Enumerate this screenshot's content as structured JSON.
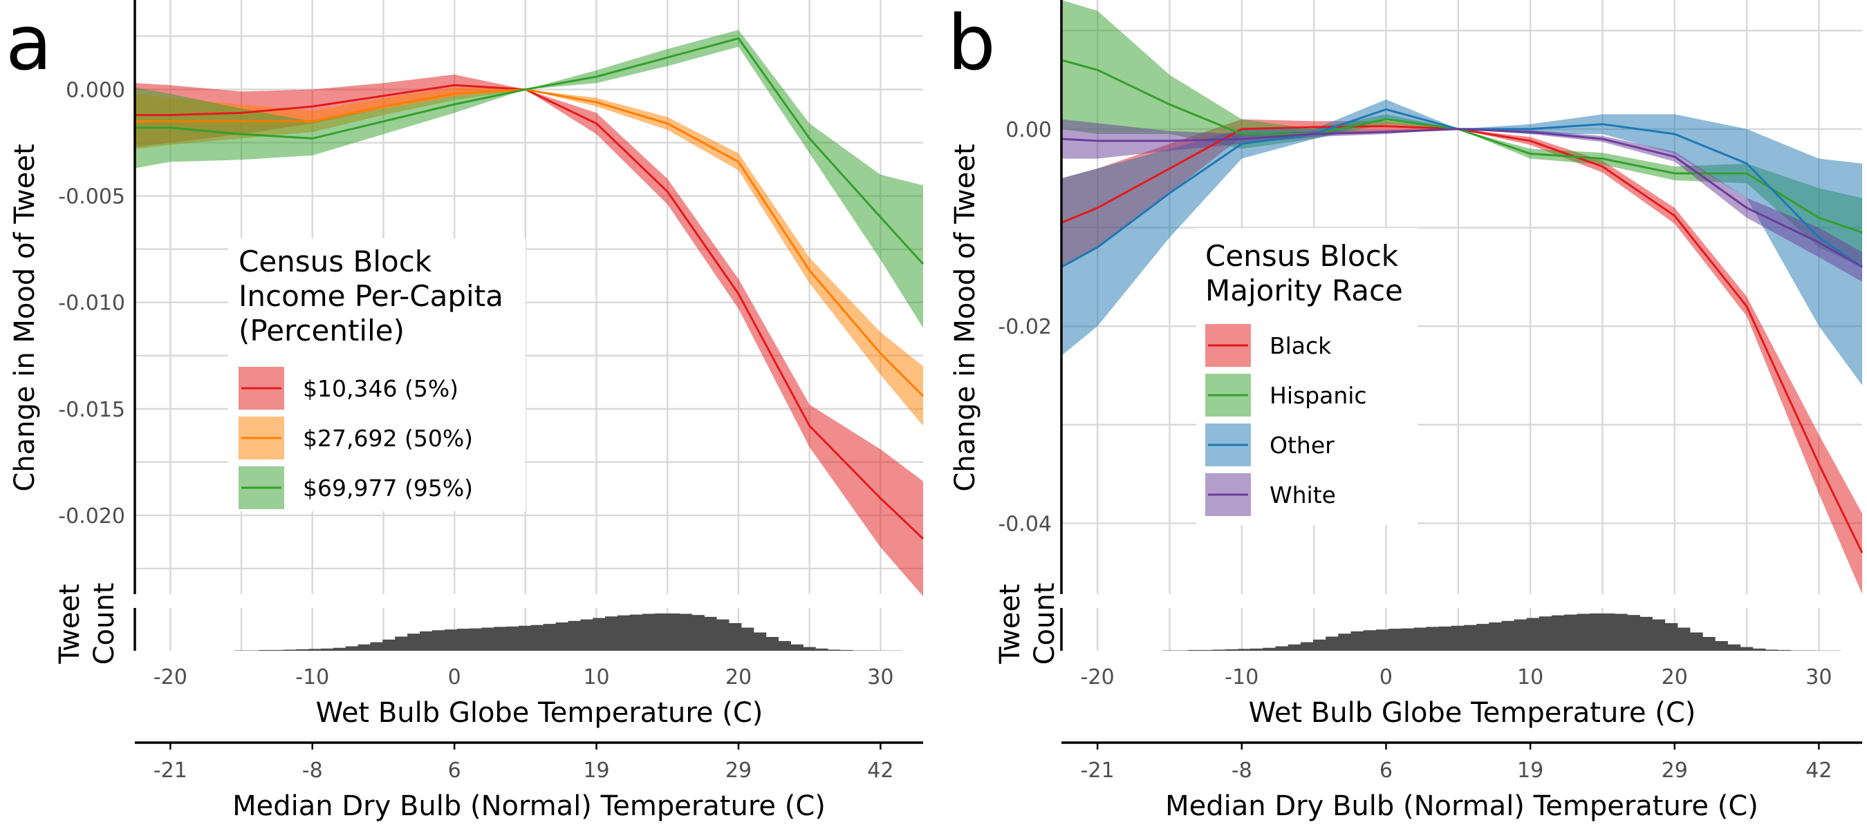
{
  "colors": {
    "red": "#e41a1c",
    "orange": "#ff7f00",
    "green": "#33a02c",
    "blue": "#1f78b4",
    "purple": "#6a3d9a",
    "histogram": "#4d4d4d"
  },
  "chart_data": [
    {
      "panel": "a",
      "type": "line",
      "ylabel": "Change in Mood of Tweet",
      "xlabel": "Wet Bulb Globe Temperature (C)",
      "xlabel2": "Median Dry Bulb (Normal) Temperature (C)",
      "xlim": [
        -22.5,
        33
      ],
      "ylim": [
        -0.0237,
        0.0042
      ],
      "x_ticks": [
        "-20",
        "-10",
        "0",
        "10",
        "20",
        "30"
      ],
      "y_ticks": [
        "0.000",
        "-0.005",
        "-0.010",
        "-0.015",
        "-0.020"
      ],
      "x2_ticks": [
        "-21",
        "-8",
        "6",
        "19",
        "29",
        "42"
      ],
      "hist_label": [
        "Tweet",
        "Count"
      ],
      "legend": {
        "title": [
          "Census Block",
          "Income Per-Capita",
          "(Percentile)"
        ],
        "placement": "center-left"
      },
      "series": [
        {
          "name": "$10,346 (5%)",
          "color": "red",
          "x": [
            -22.5,
            -20,
            -15,
            -10,
            -5,
            0,
            5,
            10,
            15,
            20,
            25,
            30,
            33
          ],
          "y": [
            -0.0012,
            -0.0012,
            -0.0011,
            -0.0008,
            -0.0003,
            0.0002,
            0.0,
            -0.0016,
            -0.0048,
            -0.0096,
            -0.0158,
            -0.0192,
            -0.0211
          ],
          "lower": [
            -0.0027,
            -0.0025,
            -0.0021,
            -0.0016,
            -0.0009,
            -0.0003,
            0.0,
            -0.0021,
            -0.0054,
            -0.0103,
            -0.0168,
            -0.0215,
            -0.0238
          ],
          "upper": [
            0.0003,
            0.0002,
            -0.0001,
            0.0,
            0.0003,
            0.0007,
            0.0,
            -0.0011,
            -0.0042,
            -0.0089,
            -0.0148,
            -0.0169,
            -0.0184
          ]
        },
        {
          "name": "$27,692 (50%)",
          "color": "orange",
          "x": [
            -22.5,
            -20,
            -15,
            -10,
            -5,
            0,
            5,
            10,
            15,
            20,
            25,
            30,
            33
          ],
          "y": [
            -0.0015,
            -0.0015,
            -0.0015,
            -0.0015,
            -0.0008,
            -0.0002,
            0.0,
            -0.0006,
            -0.0016,
            -0.0034,
            -0.0085,
            -0.0124,
            -0.0144
          ],
          "lower": [
            -0.0028,
            -0.0026,
            -0.0023,
            -0.002,
            -0.0012,
            -0.0005,
            0.0,
            -0.0008,
            -0.0019,
            -0.0038,
            -0.0091,
            -0.0134,
            -0.0158
          ],
          "upper": [
            -0.0002,
            -0.0004,
            -0.0007,
            -0.001,
            -0.0004,
            0.0001,
            0.0,
            -0.0004,
            -0.0013,
            -0.003,
            -0.0079,
            -0.0114,
            -0.013
          ]
        },
        {
          "name": "$69,977 (95%)",
          "color": "green",
          "x": [
            -22.5,
            -20,
            -15,
            -10,
            -5,
            0,
            5,
            10,
            15,
            20,
            25,
            30,
            33
          ],
          "y": [
            -0.0018,
            -0.0018,
            -0.0021,
            -0.0023,
            -0.0015,
            -0.0007,
            0.0,
            0.0006,
            0.0015,
            0.0024,
            -0.0023,
            -0.006,
            -0.0082
          ],
          "lower": [
            -0.0037,
            -0.0034,
            -0.0033,
            -0.0031,
            -0.0021,
            -0.0011,
            0.0,
            0.0003,
            0.0011,
            0.002,
            -0.003,
            -0.008,
            -0.0112
          ],
          "upper": [
            0.0001,
            -0.0002,
            -0.0009,
            -0.0015,
            -0.0009,
            -0.0003,
            0.0,
            0.0009,
            0.0019,
            0.0028,
            -0.0016,
            -0.004,
            -0.0045
          ]
        }
      ],
      "histogram": [
        0.01,
        0.01,
        0.02,
        0.02,
        0.03,
        0.04,
        0.05,
        0.06,
        0.08,
        0.12,
        0.17,
        0.23,
        0.3,
        0.38,
        0.46,
        0.52,
        0.55,
        0.57,
        0.59,
        0.6,
        0.62,
        0.64,
        0.65,
        0.67,
        0.69,
        0.72,
        0.76,
        0.8,
        0.84,
        0.88,
        0.92,
        0.95,
        0.97,
        0.99,
        1.0,
        1.0,
        0.99,
        0.96,
        0.91,
        0.84,
        0.74,
        0.62,
        0.49,
        0.37,
        0.26,
        0.17,
        0.1,
        0.06,
        0.03,
        0.02,
        0.01,
        0.01,
        0.005,
        0.005
      ]
    },
    {
      "panel": "b",
      "type": "line",
      "ylabel": "Change in Mood of Tweet",
      "xlabel": "Wet Bulb Globe Temperature (C)",
      "xlabel2": "Median Dry Bulb (Normal) Temperature (C)",
      "xlim": [
        -22.5,
        33
      ],
      "ylim": [
        -0.0472,
        0.0131
      ],
      "x_ticks": [
        "-20",
        "-10",
        "0",
        "10",
        "20",
        "30"
      ],
      "y_ticks": [
        "0.00",
        "-0.02",
        "-0.04"
      ],
      "x2_ticks": [
        "-21",
        "-8",
        "6",
        "19",
        "29",
        "42"
      ],
      "hist_label": [
        "Tweet",
        "Count"
      ],
      "legend": {
        "title": [
          "Census Block",
          "Majority Race"
        ],
        "placement": "center"
      },
      "series": [
        {
          "name": "Black",
          "color": "red",
          "x": [
            -22.5,
            -20,
            -15,
            -10,
            -5,
            0,
            5,
            10,
            15,
            20,
            25,
            30,
            33
          ],
          "y": [
            -0.0095,
            -0.008,
            -0.004,
            0.0,
            0.0002,
            0.0003,
            0.0,
            -0.0012,
            -0.0038,
            -0.0088,
            -0.018,
            -0.034,
            -0.043
          ],
          "lower": [
            -0.014,
            -0.012,
            -0.0065,
            -0.0008,
            -0.0004,
            -0.0002,
            0.0,
            -0.0016,
            -0.0044,
            -0.0096,
            -0.019,
            -0.037,
            -0.0472
          ],
          "upper": [
            -0.005,
            -0.004,
            -0.0015,
            0.001,
            0.0008,
            0.0008,
            0.0,
            -0.0008,
            -0.0032,
            -0.008,
            -0.017,
            -0.031,
            -0.039
          ]
        },
        {
          "name": "Hispanic",
          "color": "green",
          "x": [
            -22.5,
            -20,
            -15,
            -10,
            -5,
            0,
            5,
            10,
            15,
            20,
            25,
            30,
            33
          ],
          "y": [
            0.007,
            0.006,
            0.0025,
            -0.0005,
            -0.0005,
            0.001,
            0.0,
            -0.0025,
            -0.003,
            -0.0045,
            -0.0045,
            -0.009,
            -0.0105
          ],
          "lower": [
            0.0,
            -0.0005,
            -0.0005,
            -0.002,
            -0.001,
            0.0005,
            0.0,
            -0.003,
            -0.0036,
            -0.0052,
            -0.0055,
            -0.012,
            -0.014
          ],
          "upper": [
            0.0131,
            0.012,
            0.0055,
            0.001,
            0.0,
            0.0015,
            0.0,
            -0.002,
            -0.0024,
            -0.0038,
            -0.0035,
            -0.006,
            -0.007
          ]
        },
        {
          "name": "Other",
          "color": "blue",
          "x": [
            -22.5,
            -20,
            -15,
            -10,
            -5,
            0,
            5,
            10,
            15,
            20,
            25,
            30,
            33
          ],
          "y": [
            -0.014,
            -0.012,
            -0.0065,
            -0.0015,
            -0.0005,
            0.002,
            0.0,
            0.0,
            0.0005,
            -0.0005,
            -0.0035,
            -0.011,
            -0.014
          ],
          "lower": [
            -0.023,
            -0.02,
            -0.011,
            -0.003,
            -0.001,
            0.001,
            0.0,
            -0.0005,
            -0.0005,
            -0.0025,
            -0.007,
            -0.02,
            -0.026
          ],
          "upper": [
            -0.005,
            -0.004,
            -0.002,
            0.0,
            0.0,
            0.003,
            0.0,
            0.0005,
            0.0015,
            0.0015,
            0.0,
            -0.003,
            -0.0035
          ]
        },
        {
          "name": "White",
          "color": "purple",
          "x": [
            -22.5,
            -20,
            -15,
            -10,
            -5,
            0,
            5,
            10,
            15,
            20,
            25,
            30,
            33
          ],
          "y": [
            -0.001,
            -0.0012,
            -0.0012,
            -0.001,
            -0.0005,
            -0.0003,
            0.0,
            -0.0003,
            -0.001,
            -0.0028,
            -0.008,
            -0.0115,
            -0.014
          ],
          "lower": [
            -0.003,
            -0.003,
            -0.0022,
            -0.0015,
            -0.0008,
            -0.0005,
            0.0,
            -0.0005,
            -0.0013,
            -0.0033,
            -0.009,
            -0.013,
            -0.0155
          ],
          "upper": [
            0.001,
            0.0006,
            -0.0002,
            -0.0005,
            -0.0002,
            -0.0001,
            0.0,
            -0.0001,
            -0.0007,
            -0.0023,
            -0.007,
            -0.01,
            -0.0125
          ]
        }
      ],
      "histogram": [
        0.01,
        0.01,
        0.02,
        0.02,
        0.03,
        0.04,
        0.05,
        0.06,
        0.08,
        0.12,
        0.17,
        0.23,
        0.3,
        0.38,
        0.46,
        0.52,
        0.55,
        0.57,
        0.59,
        0.6,
        0.62,
        0.64,
        0.65,
        0.67,
        0.69,
        0.72,
        0.76,
        0.8,
        0.84,
        0.88,
        0.92,
        0.95,
        0.97,
        0.99,
        1.0,
        1.0,
        0.99,
        0.96,
        0.91,
        0.84,
        0.74,
        0.62,
        0.49,
        0.37,
        0.26,
        0.17,
        0.1,
        0.06,
        0.03,
        0.02,
        0.01,
        0.01,
        0.005,
        0.005
      ]
    }
  ]
}
